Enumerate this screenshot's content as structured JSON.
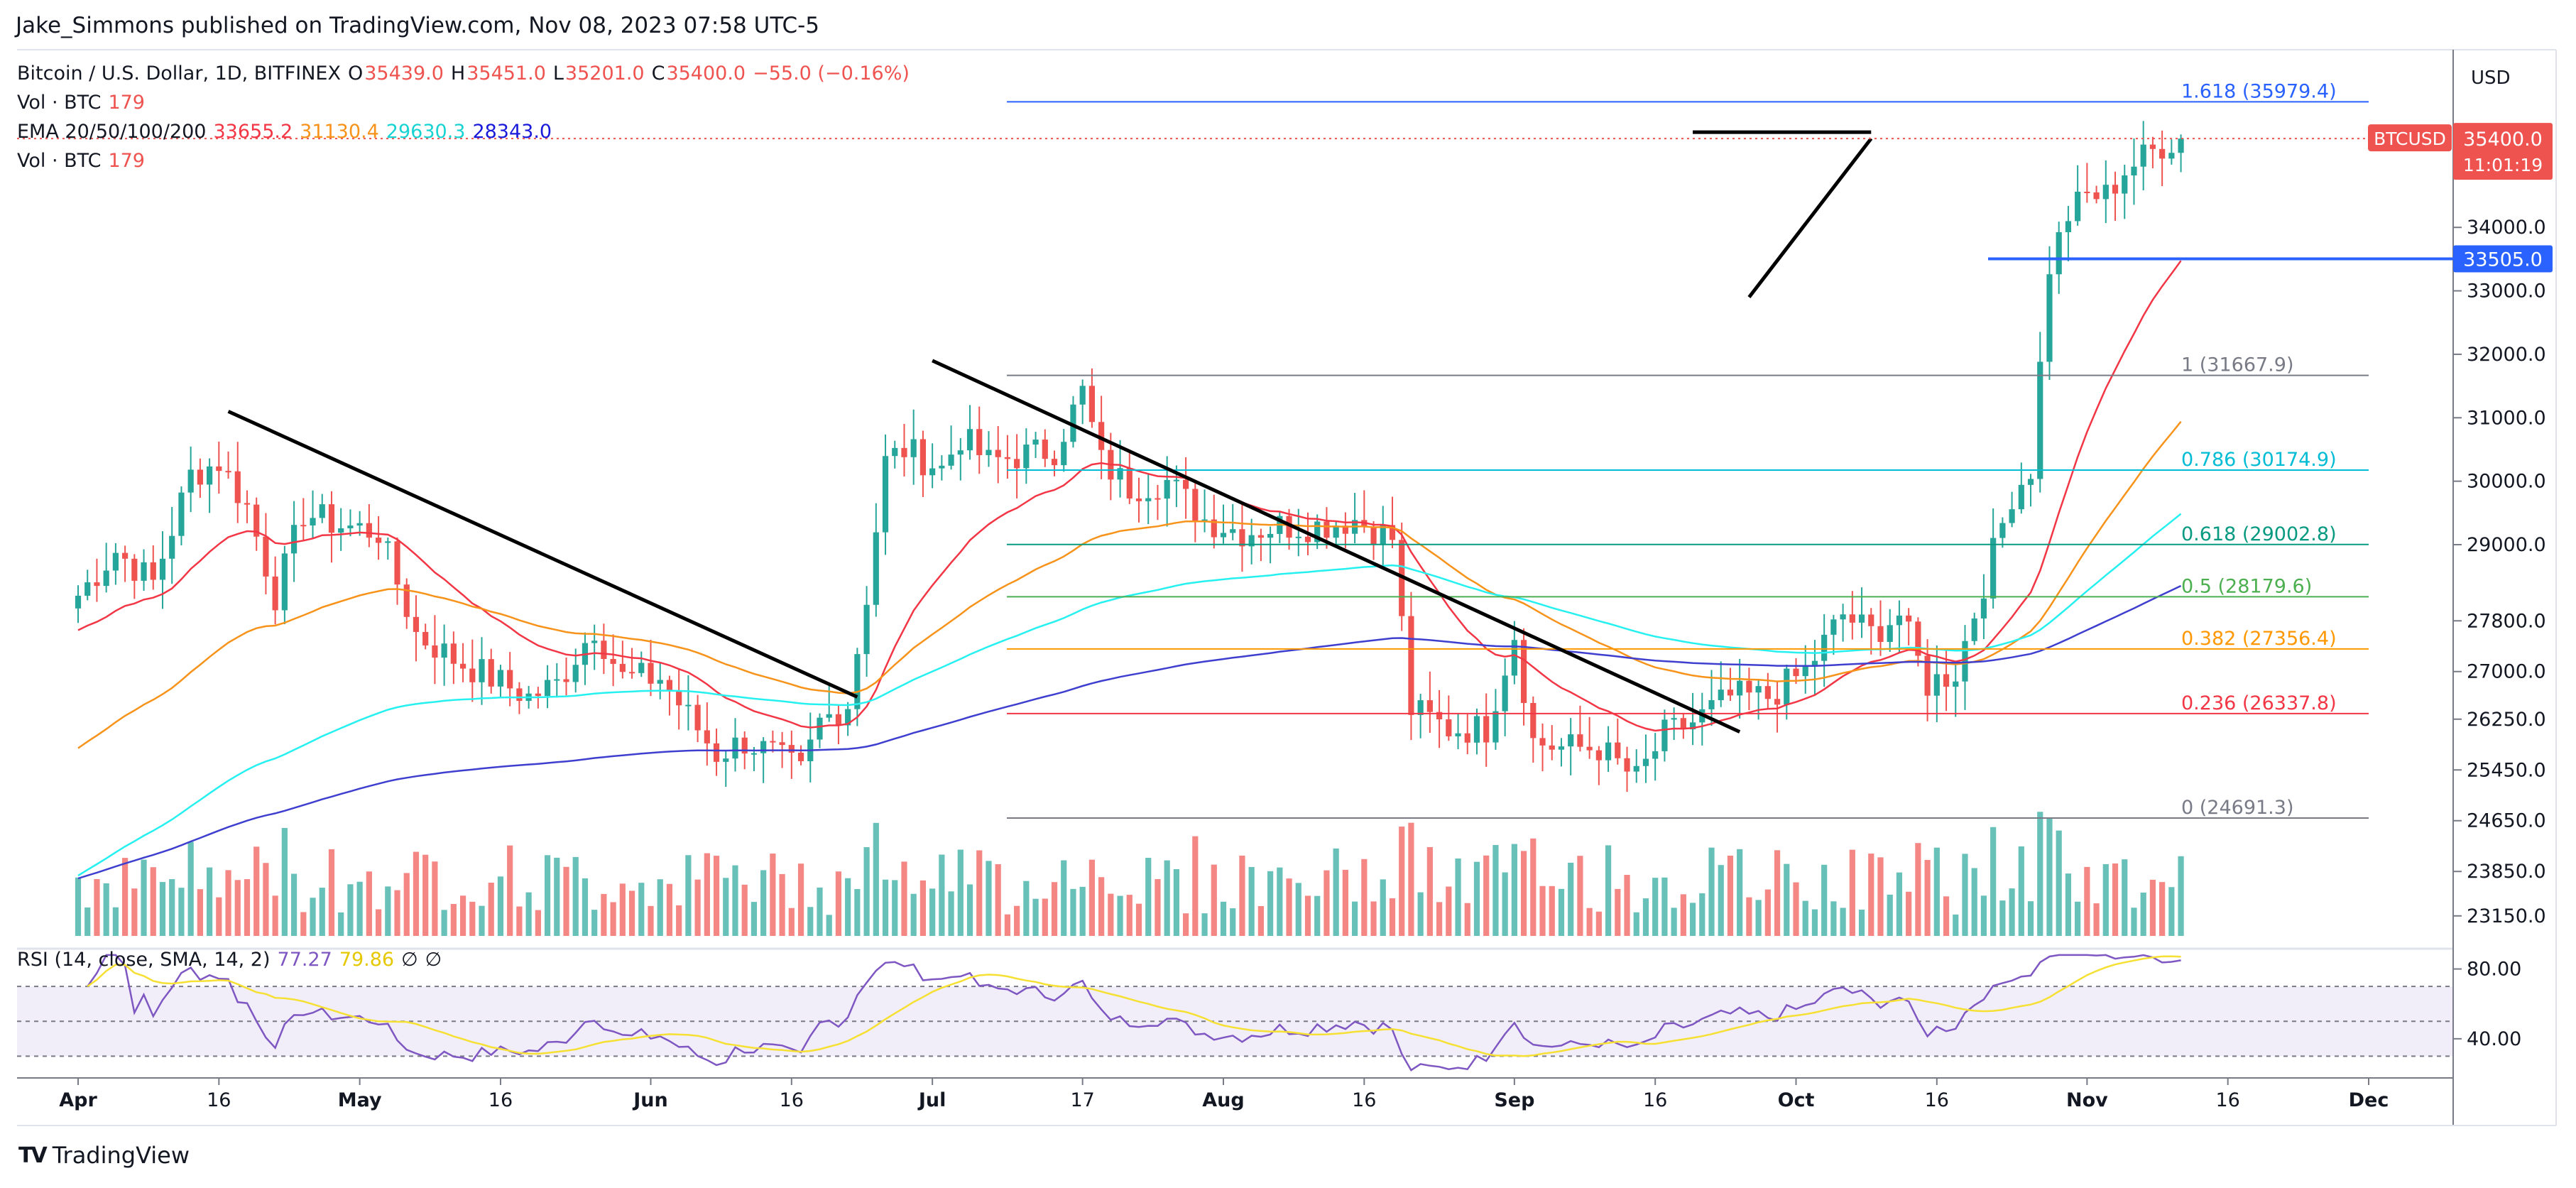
{
  "publisher": "Jake_Simmons published on TradingView.com, Nov 08, 2023 07:58 UTC-5",
  "brand": "TradingView",
  "brand_logo": "TV",
  "header": {
    "symbol": "Bitcoin / U.S. Dollar, 1D, BITFINEX",
    "o_label": "O",
    "o": "35439.0",
    "h_label": "H",
    "h": "35451.0",
    "l_label": "L",
    "l": "35201.0",
    "c_label": "C",
    "c": "35400.0",
    "change": "−55.0 (−0.16%)",
    "vol1_label": "Vol · BTC",
    "vol1": "179",
    "ema_label": "EMA 20/50/100/200",
    "ema20": "33655.2",
    "ema50": "31130.4",
    "ema100": "29630.3",
    "ema200": "28343.0",
    "vol2_label": "Vol · BTC",
    "vol2": "179",
    "rsi_label": "RSI (14, close, SMA, 14, 2)",
    "rsi": "77.27",
    "rsi_sma": "79.86",
    "rsi_extra1": "∅",
    "rsi_extra2": "∅"
  },
  "currency": "USD",
  "price_labels": {
    "ticker": "BTCUSD",
    "price": "35400.0",
    "countdown": "11:01:19",
    "level": "33505.0"
  },
  "colors": {
    "up": "#26a69a",
    "down": "#ef5350",
    "ema20": "#f23645",
    "ema50": "#f7931a",
    "ema100": "#26f0f0",
    "ema200": "#3f3fcf",
    "rsi": "#7e57c2",
    "rsi_sma": "#f5e033"
  },
  "chart_data": {
    "type": "candlestick",
    "title": "Bitcoin / U.S. Dollar, 1D, BITFINEX",
    "ylim": [
      22700,
      36800
    ],
    "y_ticks": [
      "34000.0",
      "33000.0",
      "32000.0",
      "31000.0",
      "30000.0",
      "29000.0",
      "27800.0",
      "27000.0",
      "26250.0",
      "25450.0",
      "24650.0",
      "23850.0",
      "23150.0"
    ],
    "x_ticks": [
      "Apr",
      "16",
      "May",
      "16",
      "Jun",
      "16",
      "Jul",
      "17",
      "Aug",
      "16",
      "Sep",
      "16",
      "Oct",
      "16",
      "Nov",
      "16",
      "Dec"
    ],
    "x_tick_days": [
      0,
      15,
      30,
      45,
      61,
      76,
      91,
      107,
      122,
      137,
      153,
      168,
      183,
      198,
      214,
      229,
      244
    ],
    "ohlc_keyframes": [
      [
        0,
        28200
      ],
      [
        4,
        28900
      ],
      [
        8,
        28400
      ],
      [
        12,
        30100
      ],
      [
        15,
        30300
      ],
      [
        18,
        29600
      ],
      [
        21,
        28200
      ],
      [
        24,
        29500
      ],
      [
        28,
        29300
      ],
      [
        32,
        29200
      ],
      [
        36,
        27600
      ],
      [
        40,
        27200
      ],
      [
        44,
        26900
      ],
      [
        48,
        26600
      ],
      [
        51,
        26800
      ],
      [
        55,
        27700
      ],
      [
        58,
        26900
      ],
      [
        62,
        26900
      ],
      [
        65,
        26300
      ],
      [
        68,
        25700
      ],
      [
        71,
        25900
      ],
      [
        74,
        25700
      ],
      [
        77,
        25400
      ],
      [
        79,
        26200
      ],
      [
        82,
        26500
      ],
      [
        84,
        28200
      ],
      [
        86,
        30300
      ],
      [
        88,
        30500
      ],
      [
        92,
        30200
      ],
      [
        94,
        30700
      ],
      [
        97,
        30300
      ],
      [
        100,
        30400
      ],
      [
        104,
        30500
      ],
      [
        107,
        31400
      ],
      [
        109,
        30300
      ],
      [
        112,
        29900
      ],
      [
        116,
        30000
      ],
      [
        120,
        29400
      ],
      [
        124,
        29200
      ],
      [
        128,
        29300
      ],
      [
        132,
        29300
      ],
      [
        136,
        29400
      ],
      [
        140,
        29100
      ],
      [
        142,
        26400
      ],
      [
        146,
        26100
      ],
      [
        150,
        26100
      ],
      [
        153,
        27600
      ],
      [
        155,
        25900
      ],
      [
        158,
        25800
      ],
      [
        162,
        25800
      ],
      [
        166,
        25300
      ],
      [
        169,
        26000
      ],
      [
        172,
        26200
      ],
      [
        176,
        26600
      ],
      [
        180,
        26600
      ],
      [
        184,
        27000
      ],
      [
        188,
        27900
      ],
      [
        191,
        27600
      ],
      [
        194,
        27900
      ],
      [
        197,
        26800
      ],
      [
        200,
        27000
      ],
      [
        203,
        28400
      ],
      [
        206,
        29800
      ],
      [
        208,
        30200
      ],
      [
        210,
        33400
      ],
      [
        212,
        34200
      ],
      [
        214,
        34500
      ],
      [
        216,
        34500
      ],
      [
        218,
        34900
      ],
      [
        220,
        35100
      ],
      [
        222,
        35300
      ],
      [
        224,
        35400
      ]
    ],
    "volume_scale_note": "relative",
    "fibonacci": [
      {
        "ratio": "1.618",
        "value": 35979.4,
        "label": "1.618 (35979.4)",
        "color": "#2962ff"
      },
      {
        "ratio": "1",
        "value": 31667.9,
        "label": "1 (31667.9)",
        "color": "#787b86"
      },
      {
        "ratio": "0.786",
        "value": 30174.9,
        "label": "0.786 (30174.9)",
        "color": "#00bcd4"
      },
      {
        "ratio": "0.618",
        "value": 29002.8,
        "label": "0.618 (29002.8)",
        "color": "#089981"
      },
      {
        "ratio": "0.5",
        "value": 28179.6,
        "label": "0.5 (28179.6)",
        "color": "#4caf50"
      },
      {
        "ratio": "0.382",
        "value": 27356.4,
        "label": "0.382 (27356.4)",
        "color": "#ff9800"
      },
      {
        "ratio": "0.236",
        "value": 26337.8,
        "label": "0.236 (26337.8)",
        "color": "#f23645"
      },
      {
        "ratio": "0",
        "value": 24691.3,
        "label": "0 (24691.3)",
        "color": "#787b86"
      }
    ],
    "trendlines": [
      {
        "from": [
          16,
          31100
        ],
        "to": [
          83,
          26600
        ]
      },
      {
        "from": [
          91,
          31900
        ],
        "to": [
          177,
          26050
        ]
      },
      {
        "from": [
          172,
          35500
        ],
        "to": [
          191,
          35500
        ]
      },
      {
        "from": [
          178,
          32900
        ],
        "to": [
          191,
          35400
        ]
      }
    ],
    "rsi_ylim": [
      20,
      90
    ],
    "rsi_ticks": [
      "80.00",
      "40.00"
    ],
    "rsi_band": [
      30,
      70
    ]
  }
}
